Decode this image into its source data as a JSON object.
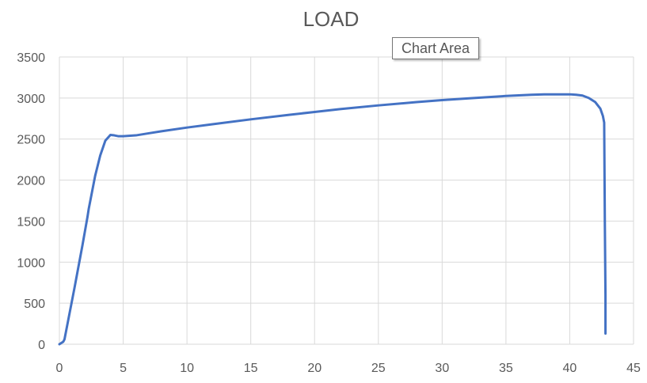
{
  "tooltip": {
    "text": "Chart Area"
  },
  "chart_data": {
    "type": "line",
    "title": "LOAD",
    "xlabel": "",
    "ylabel": "",
    "xlim": [
      0,
      45
    ],
    "ylim": [
      0,
      3500
    ],
    "x_ticks": [
      0,
      5,
      10,
      15,
      20,
      25,
      30,
      35,
      40,
      45
    ],
    "y_ticks": [
      0,
      500,
      1000,
      1500,
      2000,
      2500,
      3000,
      3500
    ],
    "grid": true,
    "legend": "none",
    "colors": {
      "line": "#4472c4",
      "grid": "#d9d9d9",
      "text": "#595959"
    },
    "series": [
      {
        "x": [
          0,
          0.3,
          0.4,
          0.7,
          1.2,
          1.8,
          2.2,
          2.3,
          2.8,
          3.2,
          3.6,
          4.0,
          4.3,
          4.6,
          5.0,
          6.0,
          7.0,
          8.0,
          10.0,
          12.0,
          15.0,
          18.0,
          20.0,
          22.0,
          25.0,
          28.0,
          30.0,
          32.0,
          35.0,
          37.0,
          38.0,
          39.0,
          40.0,
          40.5,
          41.0,
          41.5,
          42.0,
          42.4,
          42.6,
          42.7,
          42.75,
          42.8,
          42.8
        ],
        "y": [
          0,
          30,
          60,
          300,
          700,
          1200,
          1550,
          1650,
          2050,
          2300,
          2480,
          2550,
          2545,
          2535,
          2535,
          2545,
          2570,
          2595,
          2640,
          2680,
          2740,
          2795,
          2830,
          2865,
          2910,
          2950,
          2975,
          2995,
          3025,
          3040,
          3045,
          3045,
          3045,
          3040,
          3030,
          3000,
          2950,
          2870,
          2780,
          2700,
          1500,
          600,
          130
        ]
      }
    ]
  }
}
